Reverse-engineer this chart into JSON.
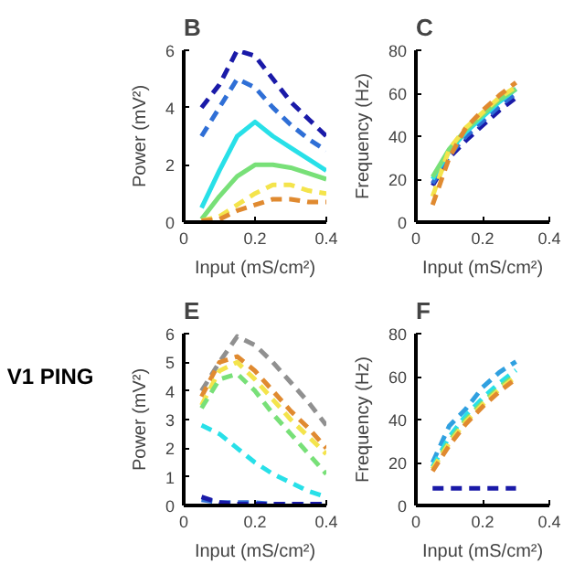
{
  "chart_data": [
    {
      "type": "line",
      "title": "B",
      "xlabel": "Input (mS/cm²)",
      "ylabel": "Power (mV²)",
      "x": [
        0.05,
        0.1,
        0.15,
        0.2,
        0.25,
        0.3,
        0.35,
        0.4
      ],
      "xlim": [
        0,
        0.4
      ],
      "ylim": [
        0,
        6
      ],
      "xticks": [
        0,
        0.2,
        0.4
      ],
      "yticks": [
        0,
        2,
        4,
        6
      ],
      "grid": false,
      "series": [
        {
          "color": "#1a1aa8",
          "line_style": "dashed",
          "values": [
            4.0,
            4.8,
            6.0,
            5.8,
            5.0,
            4.2,
            3.6,
            3.0
          ]
        },
        {
          "color": "#2f6fd6",
          "line_style": "dashed",
          "values": [
            3.0,
            4.0,
            5.0,
            4.7,
            4.0,
            3.4,
            2.9,
            2.5
          ]
        },
        {
          "color": "#28e0e8",
          "line_style": "solid",
          "values": [
            0.5,
            1.8,
            3.0,
            3.5,
            3.0,
            2.6,
            2.2,
            1.8
          ]
        },
        {
          "color": "#78e078",
          "line_style": "solid",
          "values": [
            0.1,
            0.9,
            1.6,
            2.0,
            2.0,
            1.9,
            1.7,
            1.5
          ]
        },
        {
          "color": "#f4e44c",
          "line_style": "dashed",
          "values": [
            0.05,
            0.2,
            0.6,
            1.0,
            1.3,
            1.3,
            1.1,
            1.0
          ]
        },
        {
          "color": "#e08a30",
          "line_style": "dashed",
          "values": [
            0.05,
            0.1,
            0.4,
            0.6,
            0.8,
            0.8,
            0.7,
            0.7
          ]
        }
      ]
    },
    {
      "type": "line",
      "title": "C",
      "xlabel": "Input (mS/cm²)",
      "ylabel": "Frequency (Hz)",
      "x": [
        0.05,
        0.1,
        0.15,
        0.2,
        0.25,
        0.3
      ],
      "xlim": [
        0,
        0.4
      ],
      "ylim": [
        0,
        80
      ],
      "xticks": [
        0,
        0.2,
        0.4
      ],
      "yticks": [
        0,
        20,
        40,
        60,
        80
      ],
      "grid": false,
      "series": [
        {
          "color": "#1a1aa8",
          "line_style": "dashed",
          "values": [
            17,
            30,
            38,
            45,
            52,
            58
          ]
        },
        {
          "color": "#2f6fd6",
          "line_style": "dashed",
          "values": [
            18,
            31,
            40,
            47,
            54,
            60
          ]
        },
        {
          "color": "#28e0e8",
          "line_style": "solid",
          "values": [
            20,
            33,
            42,
            49,
            56,
            62
          ]
        },
        {
          "color": "#78e078",
          "line_style": "solid",
          "values": [
            21,
            34,
            43,
            50,
            57,
            62
          ]
        },
        {
          "color": "#f4e44c",
          "line_style": "dashed",
          "values": [
            12,
            34,
            44,
            51,
            58,
            63
          ]
        },
        {
          "color": "#e08a30",
          "line_style": "dashed",
          "values": [
            8,
            30,
            44,
            52,
            59,
            65
          ]
        }
      ]
    },
    {
      "type": "line",
      "title": "E",
      "xlabel": "Input (mS/cm²)",
      "ylabel": "Power (mV²)",
      "annotations": [
        "V1 PING"
      ],
      "x": [
        0.05,
        0.1,
        0.15,
        0.2,
        0.25,
        0.3,
        0.35,
        0.4
      ],
      "xlim": [
        0,
        0.4
      ],
      "ylim": [
        0,
        6
      ],
      "xticks": [
        0,
        0.2,
        0.4
      ],
      "yticks": [
        0,
        1,
        2,
        3,
        4,
        5,
        6
      ],
      "grid": false,
      "series": [
        {
          "color": "#909090",
          "line_style": "dashed",
          "values": [
            4.0,
            5.0,
            5.9,
            5.6,
            5.0,
            4.3,
            3.6,
            2.8
          ]
        },
        {
          "color": "#e08a30",
          "line_style": "dashed",
          "values": [
            3.8,
            5.0,
            5.2,
            4.7,
            4.0,
            3.3,
            2.7,
            2.0
          ]
        },
        {
          "color": "#f4e44c",
          "line_style": "dashed",
          "values": [
            3.5,
            4.7,
            5.0,
            4.4,
            3.7,
            3.0,
            2.4,
            1.8
          ]
        },
        {
          "color": "#78e078",
          "line_style": "dashed",
          "values": [
            3.4,
            4.4,
            4.6,
            4.0,
            3.2,
            2.5,
            1.8,
            1.1
          ]
        },
        {
          "color": "#28e0e8",
          "line_style": "dashed",
          "values": [
            2.8,
            2.5,
            2.0,
            1.5,
            1.1,
            0.8,
            0.5,
            0.3
          ]
        },
        {
          "color": "#2f6fd6",
          "line_style": "dashed",
          "values": [
            0.2,
            0.1,
            0.1,
            0.1,
            0.05,
            0.05,
            0.05,
            0.05
          ]
        },
        {
          "color": "#1a1aa8",
          "line_style": "dashed",
          "values": [
            0.3,
            0.1,
            0.05,
            0.05,
            0.05,
            0.05,
            0.05,
            0.05
          ]
        }
      ]
    },
    {
      "type": "line",
      "title": "F",
      "xlabel": "Input (mS/cm²)",
      "ylabel": "Frequency (Hz)",
      "x": [
        0.05,
        0.1,
        0.15,
        0.2,
        0.25,
        0.3
      ],
      "xlim": [
        0,
        0.4
      ],
      "ylim": [
        0,
        80
      ],
      "xticks": [
        0,
        0.2,
        0.4
      ],
      "yticks": [
        0,
        20,
        40,
        60,
        80
      ],
      "grid": false,
      "series": [
        {
          "color": "#1a1aa8",
          "line_style": "dashed",
          "values": [
            8,
            8,
            8,
            8,
            8,
            8
          ]
        },
        {
          "color": "#30a0e0",
          "line_style": "dashed",
          "values": [
            20,
            37,
            45,
            55,
            62,
            67
          ]
        },
        {
          "color": "#28e0e8",
          "line_style": "dashed",
          "values": [
            18,
            32,
            42,
            50,
            57,
            63
          ]
        },
        {
          "color": "#78e078",
          "line_style": "dashed",
          "values": [
            17,
            30,
            40,
            48,
            55,
            61
          ]
        },
        {
          "color": "#f4e44c",
          "line_style": "dashed",
          "values": [
            17,
            29,
            39,
            47,
            54,
            60
          ]
        },
        {
          "color": "#e08a30",
          "line_style": "dashed",
          "values": [
            16,
            28,
            38,
            46,
            53,
            59
          ]
        }
      ]
    }
  ]
}
